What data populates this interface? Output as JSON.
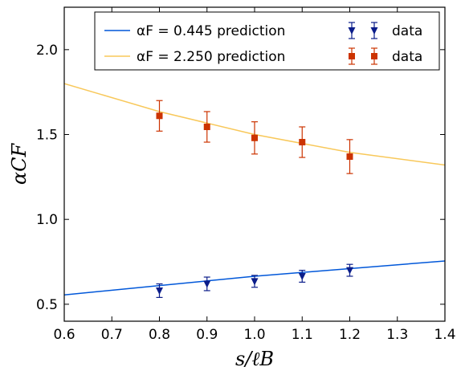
{
  "chart_data": {
    "type": "line",
    "title": "",
    "xlabel": "s/ℓB",
    "ylabel": "αCF",
    "xlim": [
      0.6,
      1.4
    ],
    "ylim": [
      0.4,
      2.25
    ],
    "grid": false,
    "legend_position": "top-right",
    "x_ticks": [
      "0.6",
      "0.7",
      "0.8",
      "0.9",
      "1.0",
      "1.1",
      "1.2",
      "1.3",
      "1.4"
    ],
    "y_ticks": [
      "0.5",
      "1.0",
      "1.5",
      "2.0"
    ],
    "lines": [
      {
        "name": "αF = 0.445 prediction",
        "color": "#0057d9",
        "x": [
          0.6,
          0.8,
          1.0,
          1.2,
          1.4
        ],
        "y": [
          0.555,
          0.61,
          0.665,
          0.71,
          0.755
        ]
      },
      {
        "name": "αF = 2.250 prediction",
        "color": "#f8c85a",
        "x": [
          0.6,
          0.8,
          1.0,
          1.2,
          1.4
        ],
        "y": [
          1.8,
          1.635,
          1.5,
          1.395,
          1.32
        ]
      }
    ],
    "points": [
      {
        "name": "data",
        "marker": "triangle-down",
        "color": "#0b1d8a",
        "x": [
          0.8,
          0.9,
          1.0,
          1.1,
          1.2
        ],
        "y": [
          0.58,
          0.62,
          0.635,
          0.665,
          0.7
        ],
        "err": [
          0.04,
          0.04,
          0.035,
          0.035,
          0.035
        ]
      },
      {
        "name": "data",
        "marker": "square",
        "color": "#cc3300",
        "x": [
          0.8,
          0.9,
          1.0,
          1.1,
          1.2
        ],
        "y": [
          1.61,
          1.545,
          1.48,
          1.455,
          1.37
        ],
        "err": [
          0.09,
          0.09,
          0.095,
          0.09,
          0.1
        ]
      }
    ]
  }
}
